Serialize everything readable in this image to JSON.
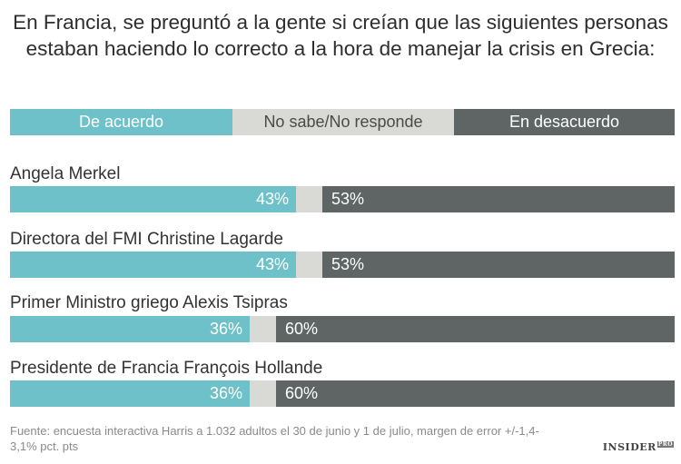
{
  "title": {
    "line1": "En Francia, se preguntó a la gente si creían que las siguientes personas",
    "line2": "estaban haciendo lo correcto a la hora de manejar la crisis en Grecia:"
  },
  "legend": {
    "agree": "De acuerdo",
    "dont_know": "No sabe/No responde",
    "disagree": "En desacuerdo"
  },
  "colors": {
    "agree": "#6fc1c9",
    "dont_know": "#d9d9d6",
    "disagree": "#5f6465"
  },
  "chart_data": {
    "type": "bar",
    "orientation": "horizontal-stacked",
    "title": "En Francia, se preguntó a la gente si creían que las siguientes personas estaban haciendo lo correcto a la hora de manejar la crisis en Grecia:",
    "categories": [
      "Angela Merkel",
      "Directora del FMI Christine Lagarde",
      "Primer Ministro griego Alexis Tsipras",
      "Presidente de Francia François Hollande"
    ],
    "series": [
      {
        "name": "De acuerdo",
        "values": [
          43,
          43,
          36,
          36
        ],
        "labels": [
          "43%",
          "43%",
          "36%",
          "36%"
        ]
      },
      {
        "name": "No sabe/No responde",
        "values": [
          4,
          4,
          4,
          4
        ]
      },
      {
        "name": "En desacuerdo",
        "values": [
          53,
          53,
          60,
          60
        ],
        "labels": [
          "53%",
          "53%",
          "60%",
          "60%"
        ]
      }
    ],
    "xlim": [
      0,
      100
    ]
  },
  "source": "Fuente: encuesta interactiva Harris a 1.032 adultos el 30 de junio y 1 de julio, margen de error +/-1,4-3,1% pct. pts",
  "logo": {
    "text": "INSIDER",
    "badge": "PRO"
  }
}
